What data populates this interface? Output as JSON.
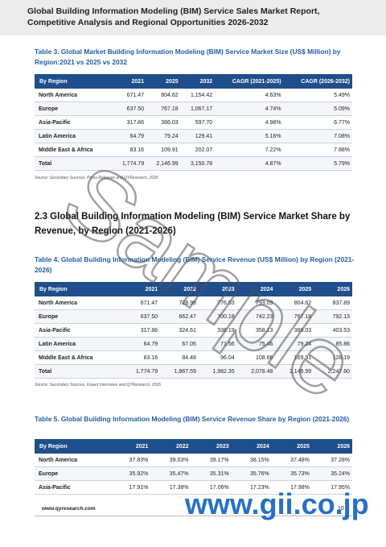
{
  "header": {
    "title": "Global Building Information Modeling (BIM) Service Sales Market Report, Competitive Analysis and Regional Opportunities 2026-2032"
  },
  "table3": {
    "caption": "Table 3.   Global Market Building Information Modeling (BIM) Service Market Size (US$ Million) by Region:2021 vs 2025 vs 2032",
    "headers": [
      "By Region",
      "2021",
      "2025",
      "2032",
      "CAGR (2021-2025)",
      "CAGR (2026-2032)"
    ],
    "rows": [
      [
        "North America",
        "671.47",
        "804.62",
        "1,154.42",
        "4.63%",
        "5.49%"
      ],
      [
        "Europe",
        "637.50",
        "767.18",
        "1,067.17",
        "4.74%",
        "5.09%"
      ],
      [
        "Asia-Pacific",
        "317.86",
        "386.03",
        "597.70",
        "4.98%",
        "6.77%"
      ],
      [
        "Latin America",
        "64.79",
        "79.24",
        "129.41",
        "5.16%",
        "7.08%"
      ],
      [
        "Middle East & Africa",
        "83.16",
        "109.91",
        "202.07",
        "7.22%",
        "7.88%"
      ],
      [
        "Total",
        "1,774.79",
        "2,146.99",
        "3,150.78",
        "4.87%",
        "5.79%"
      ]
    ],
    "source": "Source: Secondary Sources, Press Releases and QYResearch, 2026"
  },
  "section": {
    "heading": "2.3 Global Building Information Modeling (BIM) Service Market Share by Revenue, by Region (2021-2026)"
  },
  "table4": {
    "caption": "Table 4.   Global Building Information Modeling (BIM) Service Revenue (US$ Million) by Region (2021-2026)",
    "headers": [
      "By Region",
      "2021",
      "2022",
      "2023",
      "2024",
      "2025",
      "2026"
    ],
    "rows": [
      [
        "North America",
        "671.47",
        "728.98",
        "776.53",
        "793.09",
        "804.62",
        "837.89"
      ],
      [
        "Europe",
        "637.50",
        "662.47",
        "700.18",
        "742.23",
        "767.18",
        "792.13"
      ],
      [
        "Asia-Pacific",
        "317.86",
        "324.61",
        "338.19",
        "358.13",
        "386.03",
        "403.53"
      ],
      [
        "Latin America",
        "64.79",
        "67.05",
        "71.56",
        "75.46",
        "79.24",
        "85.86"
      ],
      [
        "Middle East & Africa",
        "83.16",
        "84.48",
        "96.04",
        "108.66",
        "109.91",
        "128.19"
      ],
      [
        "Total",
        "1,774.79",
        "1,867.59",
        "1,982.35",
        "2,078.48",
        "2,146.99",
        "2,247.60"
      ]
    ],
    "source": "Source: Secondary Sources, Expert Interviews and QYResearch, 2026"
  },
  "table5": {
    "caption": "Table 5.   Global Building Information Modeling (BIM) Service Revenue Share by Region (2021-2026)",
    "headers": [
      "By Region",
      "2021",
      "2022",
      "2023",
      "2024",
      "2025",
      "2026"
    ],
    "rows": [
      [
        "North America",
        "37.83%",
        "39.03%",
        "39.17%",
        "38.15%",
        "37.48%",
        "37.28%"
      ],
      [
        "Europe",
        "35.92%",
        "35.47%",
        "35.31%",
        "35.76%",
        "35.73%",
        "35.24%"
      ],
      [
        "Asia-Pacific",
        "17.91%",
        "17.38%",
        "17.06%",
        "17.23%",
        "17.98%",
        "17.95%"
      ]
    ]
  },
  "footer": {
    "url": "www.qyresearch.com",
    "page": "10"
  },
  "watermarks": {
    "sample": "Sample",
    "gii": "www.gii.co.jp",
    "color": "#1565c0"
  }
}
